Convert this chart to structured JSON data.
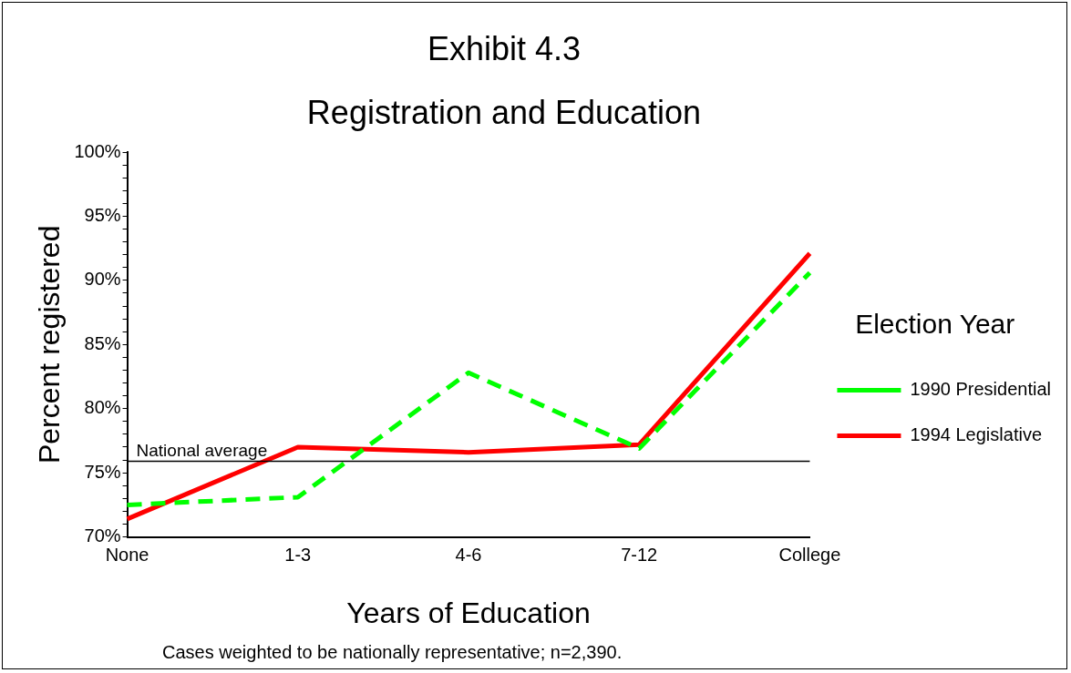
{
  "chart_data": {
    "type": "line",
    "title": "Exhibit 4.3",
    "subtitle": "Registration and Education",
    "xlabel": "Years of Education",
    "ylabel": "Percent registered",
    "legend_title": "Election Year",
    "categories": [
      "None",
      "1-3",
      "4-6",
      "7-12",
      "College"
    ],
    "series": [
      {
        "name": "1990 Presidential",
        "color": "#00ff00",
        "line_style": "dashed",
        "values": [
          72.5,
          73.1,
          82.8,
          76.9,
          90.6
        ]
      },
      {
        "name": "1994 Legislative",
        "color": "#ff0000",
        "line_style": "solid",
        "values": [
          71.4,
          77.0,
          76.6,
          77.2,
          92.1
        ]
      }
    ],
    "ylim": [
      70,
      100
    ],
    "yticks": [
      {
        "value": 70,
        "label": "70%"
      },
      {
        "value": 71,
        "label": null
      },
      {
        "value": 72,
        "label": null
      },
      {
        "value": 73,
        "label": null
      },
      {
        "value": 74,
        "label": null
      },
      {
        "value": 75,
        "label": "75%"
      },
      {
        "value": 76,
        "label": null
      },
      {
        "value": 77,
        "label": null
      },
      {
        "value": 78,
        "label": null
      },
      {
        "value": 79,
        "label": null
      },
      {
        "value": 80,
        "label": "80%"
      },
      {
        "value": 81,
        "label": null
      },
      {
        "value": 82,
        "label": null
      },
      {
        "value": 83,
        "label": null
      },
      {
        "value": 84,
        "label": null
      },
      {
        "value": 85,
        "label": "85%"
      },
      {
        "value": 86,
        "label": null
      },
      {
        "value": 87,
        "label": null
      },
      {
        "value": 88,
        "label": null
      },
      {
        "value": 89,
        "label": null
      },
      {
        "value": 90,
        "label": "90%"
      },
      {
        "value": 91,
        "label": null
      },
      {
        "value": 92,
        "label": null
      },
      {
        "value": 93,
        "label": null
      },
      {
        "value": 94,
        "label": null
      },
      {
        "value": 95,
        "label": "95%"
      },
      {
        "value": 96,
        "label": null
      },
      {
        "value": 97,
        "label": null
      },
      {
        "value": 98,
        "label": null
      },
      {
        "value": 99,
        "label": null
      },
      {
        "value": 100,
        "label": "100%"
      }
    ],
    "ref_lines": [
      {
        "axis": "y",
        "value": 75.9,
        "label": "National average",
        "color": "#000000"
      }
    ],
    "annotations": [
      "Cases weighted to be nationally representative; n=2,390."
    ],
    "grid": false,
    "legend": "right",
    "marker": "none"
  }
}
